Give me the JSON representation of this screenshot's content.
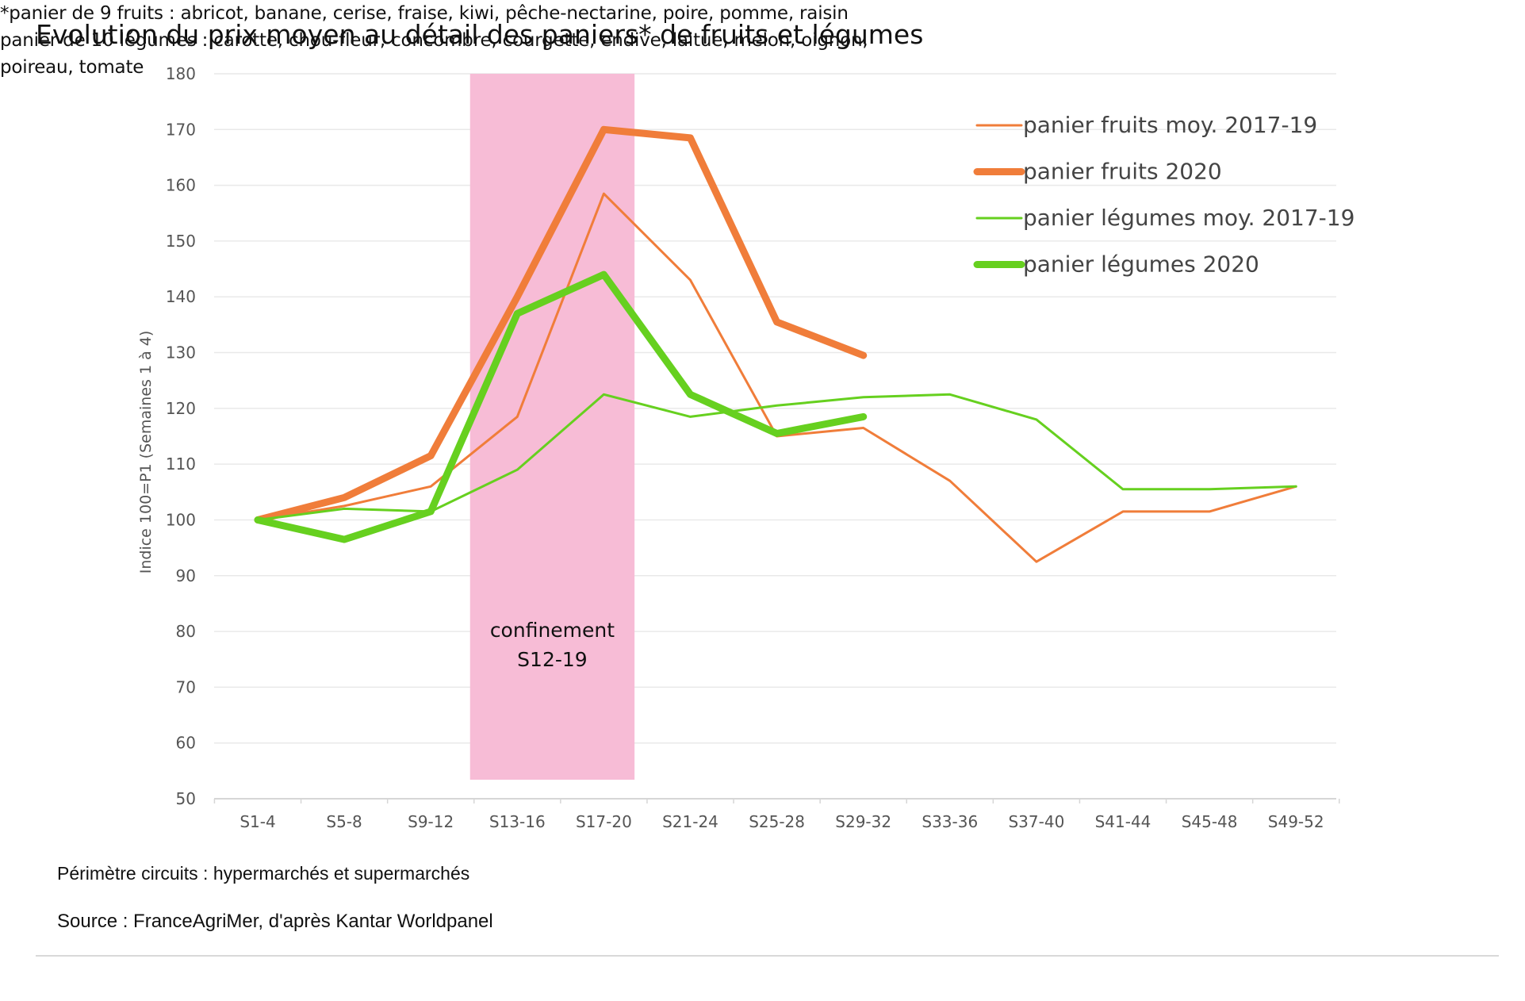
{
  "chart_data": {
    "type": "line",
    "title": "Evolution du prix moyen au détail des paniers* de fruits et légumes",
    "xlabel": "",
    "ylabel": "Indice 100=P1 (Semaines 1 à 4)",
    "ylim": [
      50,
      180
    ],
    "yticks": [
      50,
      60,
      70,
      80,
      90,
      100,
      110,
      120,
      130,
      140,
      150,
      160,
      170,
      180
    ],
    "categories": [
      "S1-4",
      "S5-8",
      "S9-12",
      "S13-16",
      "S17-20",
      "S21-24",
      "S25-28",
      "S29-32",
      "S33-36",
      "S37-40",
      "S41-44",
      "S45-48",
      "S49-52"
    ],
    "grid": true,
    "legend_position": "top-right",
    "highlight": {
      "label_lines": [
        "confinement",
        "S12-19"
      ],
      "from_index": 2.5,
      "to_index": 4.3,
      "color": "#f7bcd6"
    },
    "series": [
      {
        "name": "panier fruits moy. 2017-19",
        "color": "#f07d3a",
        "width": 3,
        "values": [
          100,
          102.5,
          106,
          118.5,
          158.5,
          143,
          115,
          116.5,
          107,
          92.5,
          101.5,
          101.5,
          106
        ]
      },
      {
        "name": "panier fruits 2020",
        "color": "#f07d3a",
        "width": 9,
        "values": [
          100,
          104,
          111.5,
          140,
          170,
          168.5,
          135.5,
          129.5,
          null,
          null,
          null,
          null,
          null
        ]
      },
      {
        "name": "panier légumes moy. 2017-19",
        "color": "#66d01f",
        "width": 3,
        "values": [
          100,
          102,
          101.5,
          109,
          122.5,
          118.5,
          120.5,
          122,
          122.5,
          118,
          105.5,
          105.5,
          106
        ]
      },
      {
        "name": "panier légumes 2020",
        "color": "#66d01f",
        "width": 9,
        "values": [
          100,
          96.5,
          101.5,
          137,
          144,
          122.5,
          115.5,
          118.5,
          null,
          null,
          null,
          null,
          null
        ]
      }
    ]
  },
  "notes": {
    "perimeter": "Périmètre circuits : hypermarchés et supermarchés",
    "source": "Source : FranceAgriMer, d'après Kantar Worldpanel",
    "footnote_lines": [
      "*panier de 9 fruits : abricot, banane, cerise, fraise, kiwi, pêche-nectarine, poire, pomme, raisin",
      "panier de 10 légumes : carotte, chou-fleur, concombre, courgette, endive, laitue, melon, oignon,",
      "poireau, tomate"
    ]
  }
}
